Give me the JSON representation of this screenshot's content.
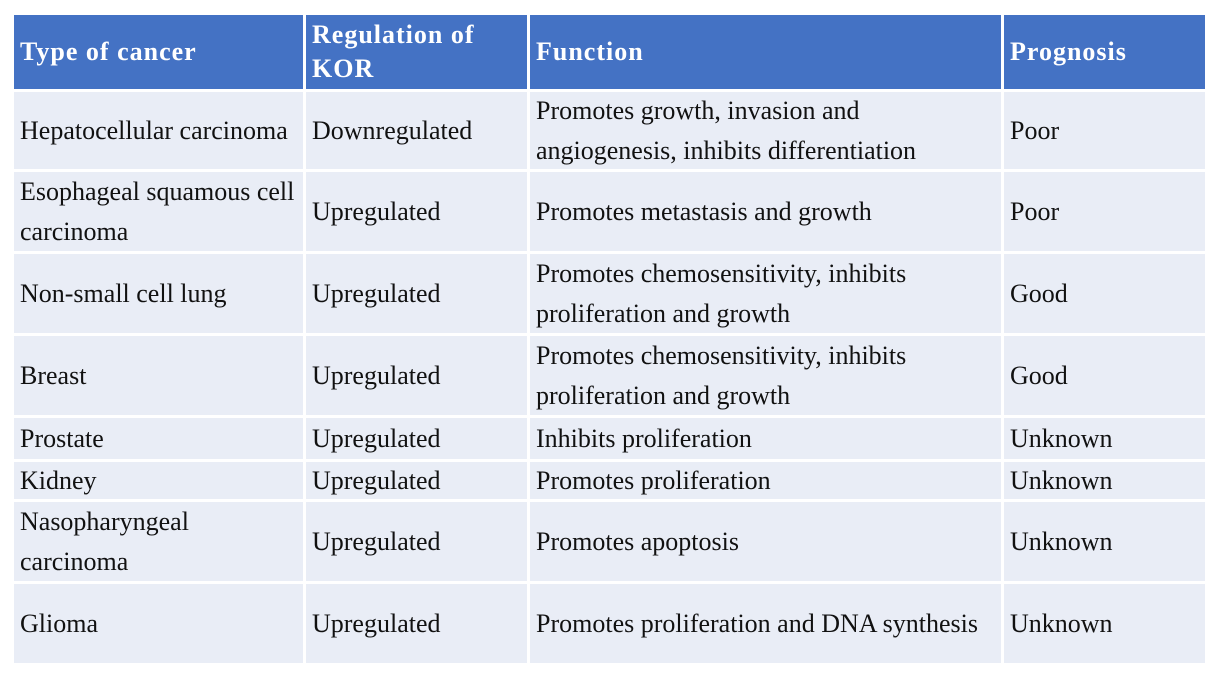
{
  "table": {
    "header": [
      "Type of cancer",
      "Regulation of KOR",
      "Function",
      "Prognosis"
    ],
    "rows": [
      [
        "Hepatocellular carcinoma",
        "Downregulated",
        "Promotes growth, invasion and angiogenesis, inhibits differentiation",
        "Poor"
      ],
      [
        "Esophageal squamous cell carcinoma",
        "Upregulated",
        "Promotes metastasis and growth",
        "Poor"
      ],
      [
        "Non-small cell lung",
        "Upregulated",
        "Promotes chemosensitivity, inhibits proliferation and growth",
        "Good"
      ],
      [
        "Breast",
        "Upregulated",
        "Promotes chemosensitivity, inhibits proliferation and growth",
        "Good"
      ],
      [
        "Prostate",
        "Upregulated",
        "Inhibits proliferation",
        "Unknown"
      ],
      [
        "Kidney",
        "Upregulated",
        "Promotes proliferation",
        "Unknown"
      ],
      [
        "Nasopharyngeal carcinoma",
        "Upregulated",
        "Promotes apoptosis",
        "Unknown"
      ],
      [
        "Glioma",
        "Upregulated",
        "Promotes proliferation and DNA synthesis",
        "Unknown"
      ]
    ]
  }
}
